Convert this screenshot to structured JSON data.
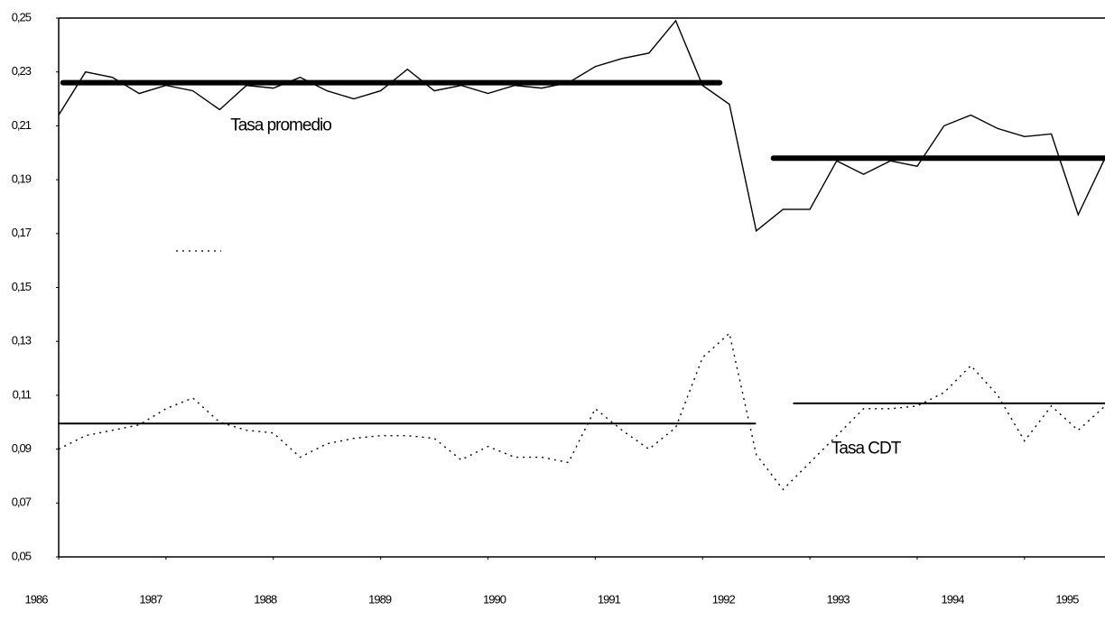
{
  "chart_data": {
    "type": "line",
    "x": [
      1986,
      1986.25,
      1986.5,
      1986.75,
      1987,
      1987.25,
      1987.5,
      1987.75,
      1988,
      1988.25,
      1988.5,
      1988.75,
      1989,
      1989.25,
      1989.5,
      1989.75,
      1990,
      1990.25,
      1990.5,
      1990.75,
      1991,
      1991.25,
      1991.5,
      1991.75,
      1992,
      1992.25,
      1992.5,
      1992.75,
      1993,
      1993.25,
      1993.5,
      1993.75,
      1994,
      1994.25,
      1994.5,
      1994.75,
      1995,
      1995.25,
      1995.5,
      1995.75
    ],
    "series": [
      {
        "color": "#000000",
        "dash": "solid",
        "values": [
          0.214,
          0.23,
          0.228,
          0.222,
          0.225,
          0.223,
          0.216,
          0.225,
          0.224,
          0.228,
          0.223,
          0.22,
          0.223,
          0.231,
          0.223,
          0.225,
          0.222,
          0.225,
          0.224,
          0.226,
          0.232,
          0.235,
          0.237,
          0.249,
          0.225,
          0.218,
          0.171,
          0.179,
          0.179,
          0.197,
          0.192,
          0.197,
          0.195,
          0.21,
          0.214,
          0.209,
          0.206,
          0.207,
          0.177,
          0.198
        ]
      },
      {
        "color": "#000000",
        "dash": "dotted",
        "values": [
          0.09,
          0.095,
          0.097,
          0.099,
          0.105,
          0.109,
          0.1,
          0.097,
          0.096,
          0.087,
          0.092,
          0.094,
          0.095,
          0.095,
          0.094,
          0.086,
          0.091,
          0.087,
          0.087,
          0.085,
          0.105,
          0.097,
          0.09,
          0.098,
          0.124,
          0.133,
          0.088,
          0.075,
          0.085,
          0.095,
          0.105,
          0.105,
          0.106,
          0.111,
          0.121,
          0.11,
          0.093,
          0.106,
          0.097,
          0.106
        ]
      }
    ],
    "average_lines": [
      {
        "x": [
          1986.04,
          1992.16
        ],
        "value": 0.226,
        "width": 6
      },
      {
        "x": [
          1992.66,
          1995.75
        ],
        "value": 0.198,
        "width": 6
      },
      {
        "x": [
          1986,
          1992.49
        ],
        "value": 0.0995,
        "width": 2
      },
      {
        "x": [
          1992.85,
          1995.75
        ],
        "value": 0.107,
        "width": 2
      }
    ],
    "annotations": [
      {
        "text": "Tasa promedio",
        "x": 1987.6,
        "y": 0.21
      },
      {
        "text": "Tasa CDT",
        "x": 1993.2,
        "y": 0.09
      }
    ],
    "xlim": [
      1986,
      1995.75
    ],
    "xticks": [
      1986,
      1987,
      1988,
      1989,
      1990,
      1991,
      1992,
      1993,
      1994,
      1995
    ],
    "ylim": [
      0.05,
      0.25
    ],
    "yticks": [
      {
        "value": 0.05,
        "label": "0,05"
      },
      {
        "value": 0.07,
        "label": "0,07"
      },
      {
        "value": 0.09,
        "label": "0,09"
      },
      {
        "value": 0.11,
        "label": "0,11"
      },
      {
        "value": 0.13,
        "label": "0,13"
      },
      {
        "value": 0.15,
        "label": "0,15"
      },
      {
        "value": 0.17,
        "label": "0,17"
      },
      {
        "value": 0.19,
        "label": "0,19"
      },
      {
        "value": 0.21,
        "label": "0,21"
      },
      {
        "value": 0.23,
        "label": "0,23"
      },
      {
        "value": 0.25,
        "label": "0,25"
      }
    ]
  }
}
